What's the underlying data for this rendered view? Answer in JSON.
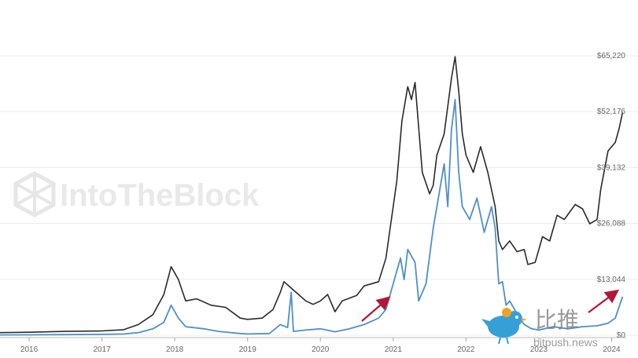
{
  "watermark": {
    "text": "IntoTheBlock",
    "icon": "cube-logo-icon"
  },
  "branding": {
    "title": "比推",
    "url": "bitpush.news",
    "icon": "bird-logo-icon"
  },
  "colors": {
    "price": "#2a2a2a",
    "metric": "#4f8fca",
    "arrow": "#b0173a",
    "grid": "#ececec",
    "bird": "#35a0d8"
  },
  "chart_data": {
    "type": "line",
    "x_ticks": [
      "2016",
      "2017",
      "2018",
      "2019",
      "2020",
      "2021",
      "2022",
      "2023",
      "2024"
    ],
    "y_ticks": [
      "$0",
      "$13,044",
      "$26,088",
      "$39,132",
      "$52,176",
      "$65,220"
    ],
    "ylim": [
      0,
      65220
    ],
    "xlim": [
      2015.6,
      2024.2
    ],
    "grid": true,
    "series": [
      {
        "color": "#2a2a2a",
        "points": [
          [
            2015.6,
            600
          ],
          [
            2016.0,
            700
          ],
          [
            2016.5,
            900
          ],
          [
            2017.0,
            1000
          ],
          [
            2017.3,
            1300
          ],
          [
            2017.5,
            2500
          ],
          [
            2017.7,
            4800
          ],
          [
            2017.85,
            9500
          ],
          [
            2017.95,
            16000
          ],
          [
            2018.05,
            13000
          ],
          [
            2018.1,
            10500
          ],
          [
            2018.15,
            8000
          ],
          [
            2018.3,
            8500
          ],
          [
            2018.5,
            7000
          ],
          [
            2018.7,
            6500
          ],
          [
            2018.9,
            4000
          ],
          [
            2019.0,
            3700
          ],
          [
            2019.2,
            4000
          ],
          [
            2019.35,
            6000
          ],
          [
            2019.45,
            10000
          ],
          [
            2019.5,
            12500
          ],
          [
            2019.6,
            11000
          ],
          [
            2019.7,
            9500
          ],
          [
            2019.8,
            8000
          ],
          [
            2019.9,
            7200
          ],
          [
            2020.0,
            8000
          ],
          [
            2020.1,
            9500
          ],
          [
            2020.2,
            5500
          ],
          [
            2020.3,
            8000
          ],
          [
            2020.5,
            9300
          ],
          [
            2020.6,
            11500
          ],
          [
            2020.8,
            12500
          ],
          [
            2020.9,
            18000
          ],
          [
            2021.0,
            30000
          ],
          [
            2021.05,
            36000
          ],
          [
            2021.12,
            50000
          ],
          [
            2021.2,
            58000
          ],
          [
            2021.25,
            55000
          ],
          [
            2021.3,
            59000
          ],
          [
            2021.4,
            38000
          ],
          [
            2021.5,
            33000
          ],
          [
            2021.55,
            35000
          ],
          [
            2021.6,
            42000
          ],
          [
            2021.7,
            47000
          ],
          [
            2021.8,
            60000
          ],
          [
            2021.85,
            65000
          ],
          [
            2021.9,
            57000
          ],
          [
            2021.95,
            47000
          ],
          [
            2022.0,
            42000
          ],
          [
            2022.1,
            38000
          ],
          [
            2022.2,
            44000
          ],
          [
            2022.3,
            38000
          ],
          [
            2022.4,
            30000
          ],
          [
            2022.45,
            22000
          ],
          [
            2022.5,
            20000
          ],
          [
            2022.6,
            22000
          ],
          [
            2022.7,
            19500
          ],
          [
            2022.8,
            20000
          ],
          [
            2022.85,
            16500
          ],
          [
            2022.95,
            17000
          ],
          [
            2023.05,
            23000
          ],
          [
            2023.15,
            22000
          ],
          [
            2023.25,
            28000
          ],
          [
            2023.35,
            27000
          ],
          [
            2023.5,
            30500
          ],
          [
            2023.6,
            29500
          ],
          [
            2023.7,
            26000
          ],
          [
            2023.8,
            27000
          ],
          [
            2023.85,
            34000
          ],
          [
            2023.95,
            43000
          ],
          [
            2024.05,
            45000
          ],
          [
            2024.1,
            48000
          ],
          [
            2024.15,
            52000
          ]
        ]
      },
      {
        "color": "#4f8fca",
        "points": [
          [
            2015.6,
            80
          ],
          [
            2016.0,
            100
          ],
          [
            2016.5,
            150
          ],
          [
            2017.0,
            200
          ],
          [
            2017.3,
            300
          ],
          [
            2017.5,
            600
          ],
          [
            2017.7,
            1500
          ],
          [
            2017.85,
            3000
          ],
          [
            2017.95,
            7000
          ],
          [
            2018.05,
            4000
          ],
          [
            2018.15,
            2000
          ],
          [
            2018.4,
            1500
          ],
          [
            2018.6,
            900
          ],
          [
            2018.9,
            400
          ],
          [
            2019.0,
            300
          ],
          [
            2019.3,
            400
          ],
          [
            2019.45,
            2500
          ],
          [
            2019.55,
            1800
          ],
          [
            2019.6,
            10000
          ],
          [
            2019.63,
            900
          ],
          [
            2019.8,
            1200
          ],
          [
            2020.0,
            1500
          ],
          [
            2020.2,
            800
          ],
          [
            2020.4,
            1500
          ],
          [
            2020.6,
            2500
          ],
          [
            2020.8,
            4000
          ],
          [
            2020.9,
            6000
          ],
          [
            2021.0,
            12000
          ],
          [
            2021.1,
            18000
          ],
          [
            2021.15,
            13000
          ],
          [
            2021.2,
            20000
          ],
          [
            2021.3,
            17000
          ],
          [
            2021.35,
            8000
          ],
          [
            2021.45,
            12000
          ],
          [
            2021.55,
            25000
          ],
          [
            2021.65,
            35000
          ],
          [
            2021.7,
            40000
          ],
          [
            2021.75,
            30000
          ],
          [
            2021.8,
            48000
          ],
          [
            2021.85,
            55000
          ],
          [
            2021.9,
            38000
          ],
          [
            2021.95,
            30000
          ],
          [
            2022.05,
            27000
          ],
          [
            2022.15,
            32000
          ],
          [
            2022.25,
            24000
          ],
          [
            2022.35,
            30000
          ],
          [
            2022.4,
            25000
          ],
          [
            2022.45,
            12000
          ],
          [
            2022.5,
            12500
          ],
          [
            2022.55,
            7000
          ],
          [
            2022.6,
            8000
          ],
          [
            2022.7,
            5000
          ],
          [
            2022.8,
            2500
          ],
          [
            2022.9,
            1500
          ],
          [
            2023.0,
            1200
          ],
          [
            2023.2,
            2000
          ],
          [
            2023.4,
            1500
          ],
          [
            2023.6,
            2000
          ],
          [
            2023.8,
            2200
          ],
          [
            2023.95,
            2800
          ],
          [
            2024.05,
            4000
          ],
          [
            2024.15,
            9000
          ]
        ]
      }
    ]
  }
}
